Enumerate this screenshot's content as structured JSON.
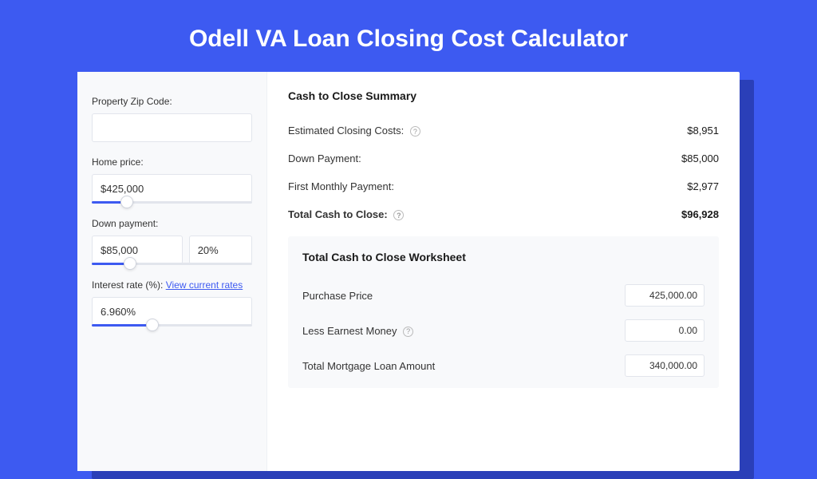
{
  "colors": {
    "page_bg": "#3d5af1",
    "shadow": "#2a3fb8",
    "card_bg": "#ffffff",
    "panel_bg": "#f8f9fb",
    "border": "#e2e5ec",
    "text": "#333333",
    "link": "#3d5af1"
  },
  "title": "Odell VA Loan Closing Cost Calculator",
  "sidebar": {
    "zip": {
      "label": "Property Zip Code:",
      "value": ""
    },
    "home_price": {
      "label": "Home price:",
      "value": "$425,000",
      "slider_pct": 22
    },
    "down_payment": {
      "label": "Down payment:",
      "amount": "$85,000",
      "percent": "20%",
      "slider_pct": 24
    },
    "interest": {
      "label": "Interest rate (%):",
      "link_text": "View current rates",
      "value": "6.960%",
      "slider_pct": 38
    }
  },
  "summary": {
    "title": "Cash to Close Summary",
    "rows": [
      {
        "label": "Estimated Closing Costs:",
        "help": true,
        "value": "$8,951"
      },
      {
        "label": "Down Payment:",
        "help": false,
        "value": "$85,000"
      },
      {
        "label": "First Monthly Payment:",
        "help": false,
        "value": "$2,977"
      }
    ],
    "total": {
      "label": "Total Cash to Close:",
      "help": true,
      "value": "$96,928"
    }
  },
  "worksheet": {
    "title": "Total Cash to Close Worksheet",
    "rows": [
      {
        "label": "Purchase Price",
        "help": false,
        "value": "425,000.00"
      },
      {
        "label": "Less Earnest Money",
        "help": true,
        "value": "0.00"
      },
      {
        "label": "Total Mortgage Loan Amount",
        "help": false,
        "value": "340,000.00"
      }
    ]
  }
}
